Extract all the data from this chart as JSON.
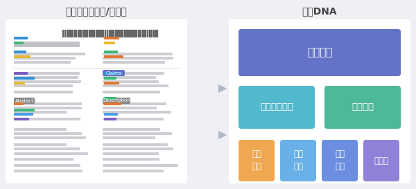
{
  "bg_color": "#eef0f4",
  "panel_color": "#ffffff",
  "left_title": "技术文档（专利/论文）",
  "right_title": "技术DNA",
  "title_fontsize": 10,
  "title_color": "#444444",
  "box1_label": "技术领域",
  "box1_color": "#6472c7",
  "box2_label": "技术解决方案",
  "box2_color": "#52b8cc",
  "box3_label": "技术功效",
  "box3_color": "#4db89a",
  "box4_label": "技术\n问题",
  "box4_color": "#f0a850",
  "box5_label": "技术\n手段",
  "box5_color": "#69b0e8",
  "box6_label": "技术\n应用",
  "box6_color": "#6b8ee0",
  "box7_label": "实施例",
  "box7_color": "#9080d8",
  "label_color": "#ffffff",
  "arrow_color": "#b0b8c8",
  "line_color_main": "#ccced4",
  "line_color_wide": "#c8cacf",
  "barcode_color": "#666666",
  "tag_claims_color": "#6472c7",
  "tag_desc_color": "#888888",
  "tag_abstract_color": "#888888",
  "col_highlights": [
    [
      20,
      170,
      22,
      "#7c5cbf"
    ],
    [
      20,
      163,
      28,
      "#48a0e0"
    ],
    [
      20,
      157,
      30,
      "#3cb87a"
    ],
    [
      20,
      148,
      14,
      "#e07830"
    ],
    [
      150,
      170,
      18,
      "#7c5cbf"
    ],
    [
      150,
      163,
      20,
      "#48a0e0"
    ],
    [
      150,
      148,
      25,
      "#e07830"
    ],
    [
      150,
      140,
      18,
      "#3cb87a"
    ],
    [
      20,
      118,
      16,
      "#e8b830"
    ],
    [
      20,
      111,
      30,
      "#3490d8"
    ],
    [
      20,
      104,
      20,
      "#7c5cbf"
    ],
    [
      150,
      118,
      22,
      "#e07830"
    ],
    [
      150,
      111,
      18,
      "#3cb87a"
    ],
    [
      150,
      104,
      25,
      "#3490d8"
    ],
    [
      20,
      80,
      24,
      "#e8b830"
    ],
    [
      20,
      73,
      18,
      "#3490d8"
    ],
    [
      150,
      80,
      28,
      "#e07830"
    ],
    [
      150,
      73,
      20,
      "#3cb87a"
    ],
    [
      20,
      60,
      14,
      "#3cb87a"
    ],
    [
      20,
      53,
      20,
      "#3490d8"
    ],
    [
      150,
      60,
      16,
      "#e8b830"
    ],
    [
      150,
      53,
      22,
      "#e07830"
    ]
  ]
}
